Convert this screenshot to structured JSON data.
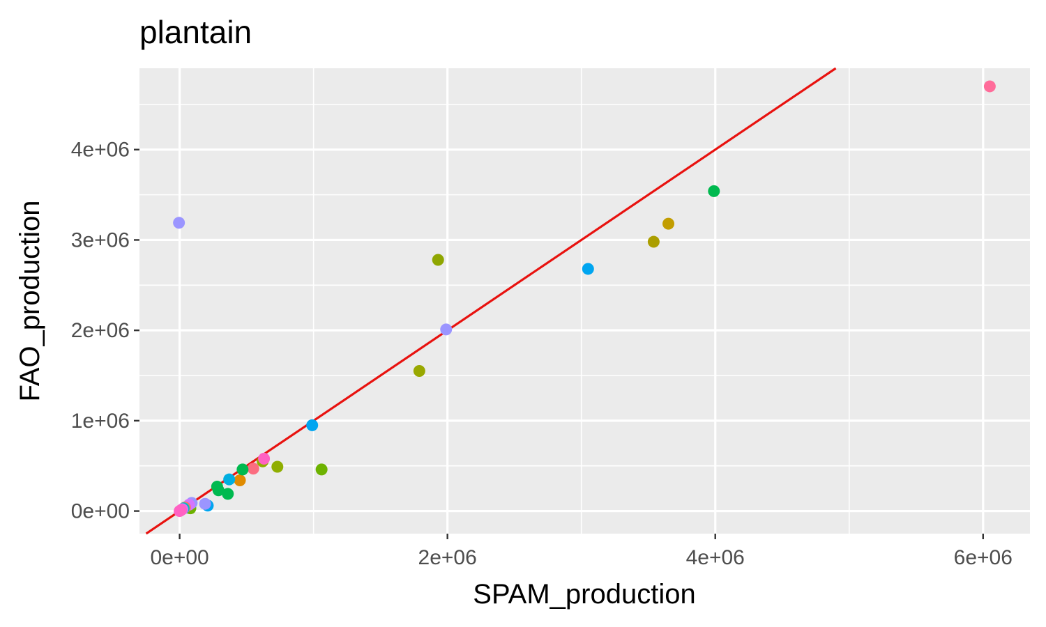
{
  "chart_data": {
    "type": "scatter",
    "title": "plantain",
    "xlabel": "SPAM_production",
    "ylabel": "FAO_production",
    "xlim": [
      -300000,
      6350000
    ],
    "ylim": [
      -250000,
      4900000
    ],
    "x_ticks": [
      0,
      2000000,
      4000000,
      6000000
    ],
    "x_tick_labels": [
      "0e+00",
      "2e+06",
      "4e+06",
      "6e+06"
    ],
    "y_ticks": [
      0,
      1000000,
      2000000,
      3000000,
      4000000
    ],
    "y_tick_labels": [
      "0e+00",
      "1e+06",
      "2e+06",
      "3e+06",
      "4e+06"
    ],
    "x_minor_breaks": [
      1000000,
      3000000,
      5000000
    ],
    "y_minor_breaks": [
      500000,
      1500000,
      2500000,
      3500000,
      4500000
    ],
    "grid": true,
    "legend": "none",
    "panel_background": "#ebebeb",
    "reference_line": {
      "slope": 1,
      "intercept": 0,
      "color": "#e8120f"
    },
    "points": [
      {
        "x": 6050000,
        "y": 4700000,
        "color": "#ff6c9a"
      },
      {
        "x": 3990000,
        "y": 3540000,
        "color": "#00b94f"
      },
      {
        "x": 3650000,
        "y": 3180000,
        "color": "#c29d00"
      },
      {
        "x": 3540000,
        "y": 2980000,
        "color": "#ab9e00"
      },
      {
        "x": 3050000,
        "y": 2680000,
        "color": "#00a5f0"
      },
      {
        "x": 1930000,
        "y": 2780000,
        "color": "#8fa600"
      },
      {
        "x": 1990000,
        "y": 2010000,
        "color": "#9b95ff"
      },
      {
        "x": 1790000,
        "y": 1550000,
        "color": "#99a800"
      },
      {
        "x": -5000,
        "y": 3190000,
        "color": "#9b95ff"
      },
      {
        "x": 990000,
        "y": 950000,
        "color": "#00a5f0"
      },
      {
        "x": 1060000,
        "y": 460000,
        "color": "#6db200"
      },
      {
        "x": 730000,
        "y": 490000,
        "color": "#8fae00"
      },
      {
        "x": 620000,
        "y": 550000,
        "color": "#8fae00"
      },
      {
        "x": 630000,
        "y": 580000,
        "color": "#ff61c3"
      },
      {
        "x": 550000,
        "y": 470000,
        "color": "#fb6d80"
      },
      {
        "x": 450000,
        "y": 340000,
        "color": "#e08b00"
      },
      {
        "x": 470000,
        "y": 460000,
        "color": "#00b94f"
      },
      {
        "x": 370000,
        "y": 350000,
        "color": "#00aee0"
      },
      {
        "x": 360000,
        "y": 190000,
        "color": "#00b94f"
      },
      {
        "x": 280000,
        "y": 270000,
        "color": "#00b94f"
      },
      {
        "x": 290000,
        "y": 230000,
        "color": "#00b94f"
      },
      {
        "x": 210000,
        "y": 60000,
        "color": "#00a5f0"
      },
      {
        "x": 190000,
        "y": 80000,
        "color": "#9b95ff"
      },
      {
        "x": 80000,
        "y": 30000,
        "color": "#6db200"
      },
      {
        "x": 90000,
        "y": 90000,
        "color": "#9b95ff"
      },
      {
        "x": 70000,
        "y": 70000,
        "color": "#d575fe"
      },
      {
        "x": 40000,
        "y": 40000,
        "color": "#f8766d"
      },
      {
        "x": 30000,
        "y": 30000,
        "color": "#00bfc4"
      },
      {
        "x": 20000,
        "y": 20000,
        "color": "#e76bf3"
      },
      {
        "x": 10000,
        "y": 10000,
        "color": "#ff61c3"
      },
      {
        "x": 0,
        "y": 0,
        "color": "#ff61c3"
      }
    ]
  }
}
